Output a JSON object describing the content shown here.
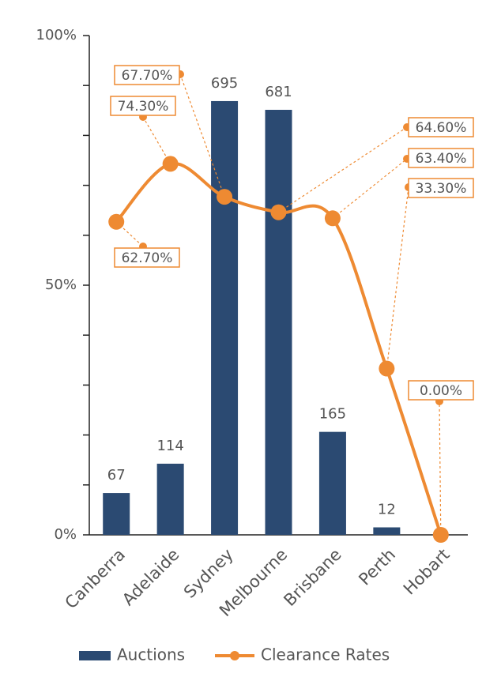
{
  "chart_data": {
    "type": "bar-line",
    "categories": [
      "Canberra",
      "Adelaide",
      "Sydney",
      "Melbourne",
      "Brisbane",
      "Perth",
      "Hobart"
    ],
    "series": [
      {
        "name": "Auctions",
        "type": "bar",
        "color": "#2b4a72",
        "axis": "y2",
        "values": [
          67,
          114,
          695,
          681,
          165,
          12,
          null
        ]
      },
      {
        "name": "Clearance Rates",
        "type": "line",
        "color": "#ee8a32",
        "values": [
          62.7,
          74.3,
          67.7,
          64.6,
          63.4,
          33.3,
          0
        ],
        "value_labels": [
          "62.70%",
          "74.30%",
          "67.70%",
          "64.60%",
          "63.40%",
          "33.30%",
          "0.00%"
        ]
      }
    ],
    "ylim": [
      0,
      100
    ],
    "yticks": [
      {
        "value": 0,
        "label": "0%"
      },
      {
        "value": 50,
        "label": "50%"
      },
      {
        "value": 100,
        "label": "100%"
      }
    ],
    "yminorticks": [
      10,
      20,
      30,
      40,
      60,
      70,
      80,
      90
    ],
    "y2lim": [
      0,
      800
    ],
    "legend": "bottom"
  }
}
